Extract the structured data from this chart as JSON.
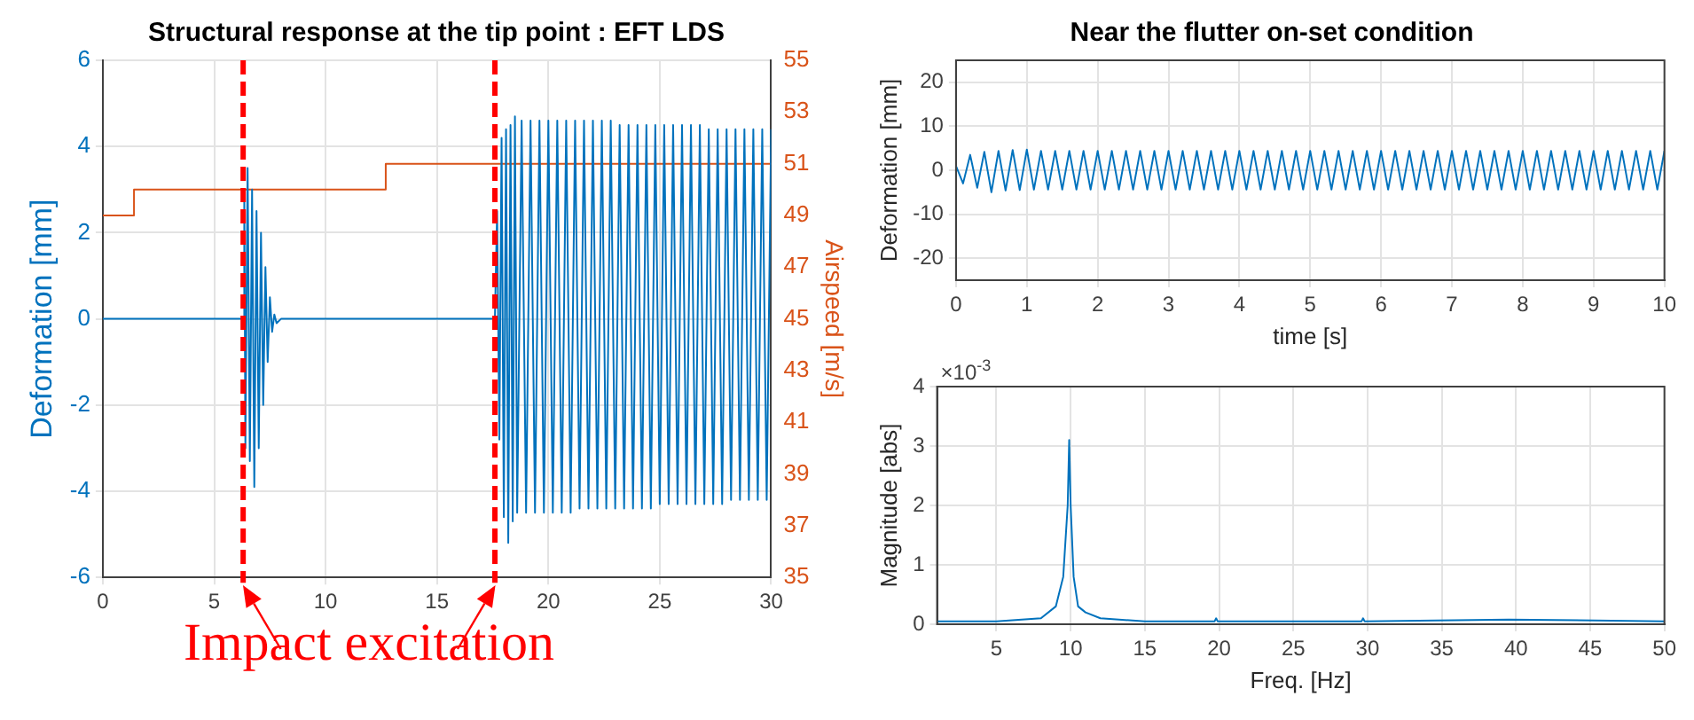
{
  "chart_data": [
    {
      "type": "line",
      "title": "Structural response at the tip point : EFT LDS",
      "ylabel": "Deformation [mm]",
      "y2label": "Airspeed [m/s]",
      "xlim": [
        0,
        30
      ],
      "xticks": [
        0,
        5,
        10,
        15,
        20,
        25,
        30
      ],
      "ylim": [
        -6,
        6
      ],
      "yticks": [
        -6,
        -4,
        -2,
        0,
        2,
        4,
        6
      ],
      "y2lim": [
        35,
        55
      ],
      "y2ticks": [
        35,
        37,
        39,
        41,
        43,
        45,
        47,
        49,
        51,
        53,
        55
      ],
      "grid": true,
      "annotations": [
        "Impact excitation"
      ],
      "ref_lines": [
        {
          "axis": "x",
          "value": 6.3,
          "color": "#ff0000",
          "line_style": "dashed"
        },
        {
          "axis": "x",
          "value": 17.6,
          "color": "#ff0000",
          "line_style": "dashed"
        }
      ],
      "series": [
        {
          "type": "line",
          "color": "#0072bd",
          "x": [
            0,
            6.3,
            6.35,
            6.4,
            6.5,
            6.6,
            6.7,
            6.8,
            6.9,
            7.0,
            7.1,
            7.2,
            7.3,
            7.4,
            7.5,
            7.6,
            7.7,
            7.8,
            8,
            17.6,
            17.7,
            17.8,
            17.9,
            18.0,
            18.1,
            18.2,
            18.3,
            18.4,
            18.5,
            18.6,
            18.8,
            19.0,
            19.2,
            19.4,
            19.6,
            19.8,
            20.0,
            20.2,
            20.4,
            20.6,
            20.8,
            21.0,
            21.2,
            21.4,
            21.6,
            21.8,
            22.0,
            22.2,
            22.4,
            22.6,
            22.8,
            23.0,
            23.2,
            23.4,
            23.6,
            23.8,
            24.0,
            24.2,
            24.4,
            24.6,
            24.8,
            25.0,
            25.2,
            25.4,
            25.6,
            25.8,
            26.0,
            26.2,
            26.4,
            26.6,
            26.8,
            27.0,
            27.2,
            27.4,
            27.6,
            27.8,
            28.0,
            28.2,
            28.4,
            28.6,
            28.8,
            29.0,
            29.2,
            29.4,
            29.6,
            29.8,
            30.0
          ],
          "values": [
            0,
            0,
            3.0,
            -3.0,
            3.5,
            -3.3,
            3.0,
            -3.9,
            2.5,
            -3.0,
            2.0,
            -2.0,
            1.2,
            -1.0,
            0.5,
            -0.3,
            0.1,
            -0.1,
            0,
            0,
            2.5,
            -2.8,
            4.2,
            -4.6,
            4.4,
            -5.2,
            4.5,
            -4.7,
            4.7,
            -4.5,
            4.6,
            -4.5,
            4.6,
            -4.5,
            4.6,
            -4.5,
            4.6,
            -4.5,
            4.6,
            -4.5,
            4.6,
            -4.5,
            4.6,
            -4.4,
            4.6,
            -4.4,
            4.6,
            -4.4,
            4.6,
            -4.4,
            4.6,
            -4.4,
            4.5,
            -4.4,
            4.5,
            -4.4,
            4.5,
            -4.4,
            4.5,
            -4.4,
            4.5,
            -4.3,
            4.5,
            -4.3,
            4.5,
            -4.3,
            4.5,
            -4.3,
            4.5,
            -4.3,
            4.5,
            -4.3,
            4.4,
            -4.3,
            4.4,
            -4.3,
            4.4,
            -4.2,
            4.4,
            -4.2,
            4.4,
            -4.2,
            4.4,
            -4.2,
            4.4,
            -4.2,
            4.4
          ]
        },
        {
          "type": "step",
          "axis": "y2",
          "color": "#d95319",
          "x": [
            0,
            1.4,
            12.7,
            30
          ],
          "values": [
            49,
            50,
            51,
            51
          ]
        }
      ]
    },
    {
      "type": "line",
      "title": "Near the flutter on-set condition",
      "xlabel": "time [s]",
      "ylabel": "Deformation [mm]",
      "xlim": [
        0,
        10
      ],
      "xticks": [
        0,
        1,
        2,
        3,
        4,
        5,
        6,
        7,
        8,
        9,
        10
      ],
      "ylim": [
        -25,
        25
      ],
      "yticks": [
        -20,
        -10,
        0,
        10,
        20
      ],
      "grid": true,
      "series": [
        {
          "color": "#0072bd",
          "x": [
            0,
            0.1,
            0.2,
            0.3,
            0.4,
            0.5,
            0.6,
            0.7,
            0.8,
            0.9,
            1,
            1.1,
            1.2,
            1.3,
            1.4,
            1.5,
            1.6,
            1.7,
            1.8,
            1.9,
            2,
            2.1,
            2.2,
            2.3,
            2.4,
            2.5,
            2.6,
            2.7,
            2.8,
            2.9,
            3,
            3.1,
            3.2,
            3.3,
            3.4,
            3.5,
            3.6,
            3.7,
            3.8,
            3.9,
            4,
            4.1,
            4.2,
            4.3,
            4.4,
            4.5,
            4.6,
            4.7,
            4.8,
            4.9,
            5,
            5.1,
            5.2,
            5.3,
            5.4,
            5.5,
            5.6,
            5.7,
            5.8,
            5.9,
            6,
            6.1,
            6.2,
            6.3,
            6.4,
            6.5,
            6.6,
            6.7,
            6.8,
            6.9,
            7,
            7.1,
            7.2,
            7.3,
            7.4,
            7.5,
            7.6,
            7.7,
            7.8,
            7.9,
            8,
            8.1,
            8.2,
            8.3,
            8.4,
            8.5,
            8.6,
            8.7,
            8.8,
            8.9,
            9,
            9.1,
            9.2,
            9.3,
            9.4,
            9.5,
            9.6,
            9.7,
            9.8,
            9.9,
            10
          ],
          "values": [
            1,
            -3,
            3.5,
            -4,
            4.2,
            -5,
            4.4,
            -4.6,
            4.6,
            -4.5,
            4.7,
            -4.4,
            4.4,
            -4.4,
            4.4,
            -4.4,
            4.4,
            -4.4,
            4.4,
            -4.4,
            4.4,
            -4.4,
            4.4,
            -4.4,
            4.4,
            -4.4,
            4.4,
            -4.4,
            4.4,
            -4.4,
            4.4,
            -4.4,
            4.4,
            -4.4,
            4.4,
            -4.4,
            4.4,
            -4.4,
            4.4,
            -4.4,
            4.4,
            -4.4,
            4.4,
            -4.4,
            4.4,
            -4.4,
            4.4,
            -4.4,
            4.4,
            -4.4,
            4.4,
            -4.4,
            4.4,
            -4.4,
            4.4,
            -4.4,
            4.4,
            -4.4,
            4.4,
            -4.4,
            4.4,
            -4.4,
            4.4,
            -4.4,
            4.4,
            -4.4,
            4.4,
            -4.4,
            4.4,
            -4.4,
            4.4,
            -4.4,
            4.4,
            -4.4,
            4.4,
            -4.4,
            4.4,
            -4.4,
            4.4,
            -4.4,
            4.4,
            -4.4,
            4.4,
            -4.4,
            4.4,
            -4.4,
            4.4,
            -4.4,
            4.4,
            -4.4,
            4.4,
            -4.4,
            4.4,
            -4.4,
            4.4,
            -4.4,
            4.4,
            -4.4,
            4.4,
            -4.4,
            4.4
          ]
        }
      ]
    },
    {
      "type": "line",
      "xlabel": "Freq. [Hz]",
      "ylabel": "Magnitude [abs]",
      "xlim": [
        1,
        50
      ],
      "xticks": [
        5,
        10,
        15,
        20,
        25,
        30,
        35,
        40,
        45,
        50
      ],
      "ylim": [
        0,
        4
      ],
      "yticks": [
        0,
        1,
        2,
        3,
        4
      ],
      "grid": true,
      "annotations": [
        "×10$^{-3}$"
      ],
      "series": [
        {
          "color": "#0072bd",
          "x": [
            1,
            5,
            8,
            9,
            9.5,
            9.8,
            9.9,
            10,
            10.2,
            10.5,
            11,
            12,
            15,
            19.7,
            19.8,
            19.9,
            29.6,
            29.7,
            29.8,
            39.5,
            50
          ],
          "values": [
            0.05,
            0.05,
            0.1,
            0.3,
            0.8,
            2,
            3.1,
            2,
            0.8,
            0.3,
            0.2,
            0.1,
            0.05,
            0.05,
            0.1,
            0.05,
            0.05,
            0.1,
            0.05,
            0.08,
            0.05
          ]
        }
      ]
    }
  ]
}
